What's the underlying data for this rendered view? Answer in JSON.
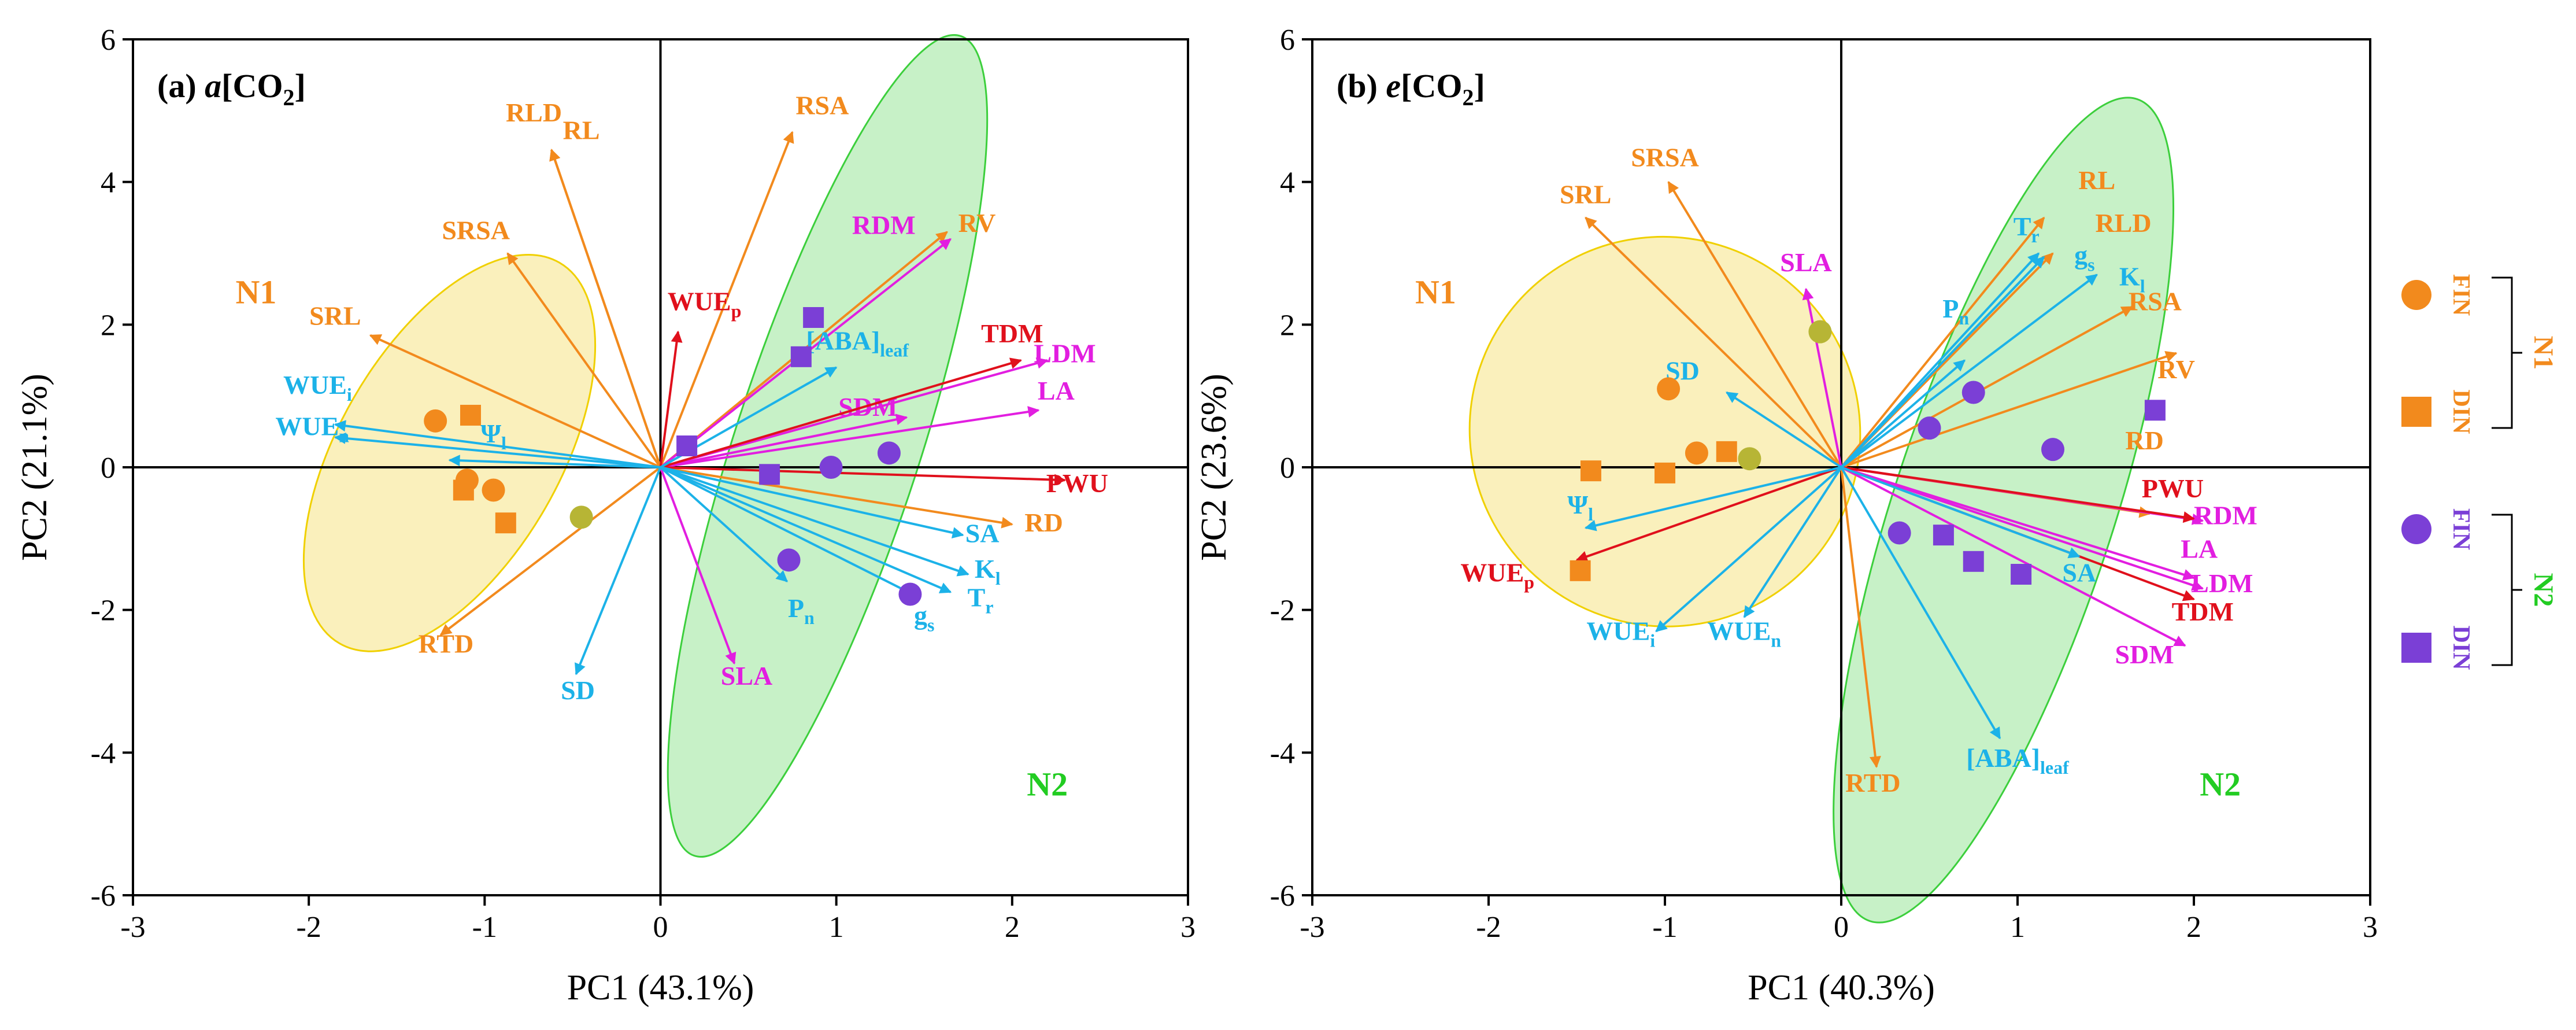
{
  "colors": {
    "orange": "#f28a1d",
    "blue": "#1cb2e8",
    "magenta": "#e21ee0",
    "red": "#e0101c",
    "purple": "#7b3fd6",
    "green_text": "#22cc22",
    "fill_yellow": "#f5e27a",
    "fill_green": "#8fe48f",
    "stroke_yellow": "#f0d000",
    "stroke_green": "#3ccf3c",
    "olive_point": "#b7b535"
  },
  "chart_data": [
    {
      "type": "scatter",
      "subtype": "pca-biplot",
      "panel_label": "(a) ",
      "panel_italic": "a",
      "panel_rest": "[CO",
      "panel_sub": "2",
      "panel_close": "]",
      "xlabel": "PC1 (43.1%)",
      "ylabel": "PC2 (21.1%)",
      "xlim": [
        -3,
        3
      ],
      "ylim": [
        -6,
        6
      ],
      "xticks": [
        "-3",
        "-2",
        "-1",
        "0",
        "1",
        "2",
        "3"
      ],
      "yticks": [
        "-6",
        "-4",
        "-2",
        "0",
        "2",
        "4",
        "6"
      ],
      "group_labels": [
        {
          "name": "N1",
          "x": -2.3,
          "y": 2.3,
          "color": "orange"
        },
        {
          "name": "N2",
          "x": 2.2,
          "y": -4.6,
          "color": "green_text"
        }
      ],
      "ellipses": [
        {
          "group": "N1",
          "cx": -1.2,
          "cy": 0.2,
          "rx": 1.25,
          "ry": 1.55,
          "angle": -60,
          "fill": "fill_yellow",
          "stroke": "stroke_yellow"
        },
        {
          "group": "N2",
          "cx": 0.95,
          "cy": 0.3,
          "rx": 2.45,
          "ry": 1.3,
          "angle": -72,
          "fill": "fill_green",
          "stroke": "stroke_green"
        }
      ],
      "vectors": [
        {
          "name": "RLD",
          "sub": "",
          "x": -0.62,
          "y": 4.45,
          "color": "orange",
          "lx": -0.72,
          "ly": 4.85
        },
        {
          "name": "RL",
          "sub": "",
          "x": -0.62,
          "y": 4.45,
          "color": "orange",
          "lx": -0.45,
          "ly": 4.6
        },
        {
          "name": "RSA",
          "sub": "",
          "x": 0.75,
          "y": 4.7,
          "color": "orange",
          "lx": 0.92,
          "ly": 4.95
        },
        {
          "name": "SRSA",
          "sub": "",
          "x": -0.87,
          "y": 3.0,
          "color": "orange",
          "lx": -1.05,
          "ly": 3.2
        },
        {
          "name": "SRL",
          "sub": "",
          "x": -1.65,
          "y": 1.85,
          "color": "orange",
          "lx": -1.85,
          "ly": 2.0
        },
        {
          "name": "RV",
          "sub": "",
          "x": 1.63,
          "y": 3.3,
          "color": "orange",
          "lx": 1.8,
          "ly": 3.3
        },
        {
          "name": "RD",
          "sub": "",
          "x": 2.0,
          "y": -0.8,
          "color": "orange",
          "lx": 2.18,
          "ly": -0.9
        },
        {
          "name": "RTD",
          "sub": "",
          "x": -1.25,
          "y": -2.35,
          "color": "orange",
          "lx": -1.22,
          "ly": -2.6
        },
        {
          "name": "RDM",
          "sub": "",
          "x": 1.65,
          "y": 3.2,
          "color": "magenta",
          "lx": 1.27,
          "ly": 3.27
        },
        {
          "name": "LDM",
          "sub": "",
          "x": 2.2,
          "y": 1.5,
          "color": "magenta",
          "lx": 2.3,
          "ly": 1.47
        },
        {
          "name": "LA",
          "sub": "",
          "x": 2.15,
          "y": 0.8,
          "color": "magenta",
          "lx": 2.25,
          "ly": 0.95
        },
        {
          "name": "SDM",
          "sub": "",
          "x": 1.4,
          "y": 0.7,
          "color": "magenta",
          "lx": 1.18,
          "ly": 0.72
        },
        {
          "name": "SLA",
          "sub": "",
          "x": 0.42,
          "y": -2.75,
          "color": "magenta",
          "lx": 0.49,
          "ly": -3.05
        },
        {
          "name": "TDM",
          "sub": "",
          "x": 2.05,
          "y": 1.5,
          "color": "red",
          "lx": 2.0,
          "ly": 1.75
        },
        {
          "name": "PWU",
          "sub": "",
          "x": 2.3,
          "y": -0.18,
          "color": "red",
          "lx": 2.37,
          "ly": -0.35
        },
        {
          "name": "WUE",
          "sub": "p",
          "x": 0.1,
          "y": 1.9,
          "color": "red",
          "lx": 0.25,
          "ly": 2.2
        },
        {
          "name": "[ABA]",
          "sub": "leaf",
          "x": 1.0,
          "y": 1.4,
          "color": "blue",
          "lx": 1.12,
          "ly": 1.65
        },
        {
          "name": "WUE",
          "sub": "i",
          "x": -1.85,
          "y": 0.6,
          "color": "blue",
          "lx": -1.95,
          "ly": 1.03
        },
        {
          "name": "WUE",
          "sub": "n",
          "x": -1.85,
          "y": 0.42,
          "color": "blue",
          "lx": -1.98,
          "ly": 0.45
        },
        {
          "name": "Ψ",
          "sub": "l",
          "x": -1.2,
          "y": 0.1,
          "color": "blue",
          "lx": -0.95,
          "ly": 0.35
        },
        {
          "name": "SD",
          "sub": "",
          "x": -0.48,
          "y": -2.9,
          "color": "blue",
          "lx": -0.47,
          "ly": -3.25
        },
        {
          "name": "P",
          "sub": "n",
          "x": 0.72,
          "y": -1.6,
          "color": "blue",
          "lx": 0.8,
          "ly": -2.1
        },
        {
          "name": "SA",
          "sub": "",
          "x": 1.72,
          "y": -0.95,
          "color": "blue",
          "lx": 1.83,
          "ly": -1.05
        },
        {
          "name": "K",
          "sub": "l",
          "x": 1.75,
          "y": -1.5,
          "color": "blue",
          "lx": 1.86,
          "ly": -1.55
        },
        {
          "name": "T",
          "sub": "r",
          "x": 1.65,
          "y": -1.75,
          "color": "blue",
          "lx": 1.82,
          "ly": -1.95
        },
        {
          "name": "g",
          "sub": "s",
          "x": 1.45,
          "y": -1.8,
          "color": "blue",
          "lx": 1.5,
          "ly": -2.2
        }
      ],
      "points": [
        {
          "x": -1.28,
          "y": 0.65,
          "shape": "circle",
          "color": "orange"
        },
        {
          "x": -1.1,
          "y": -0.18,
          "shape": "circle",
          "color": "orange"
        },
        {
          "x": -0.95,
          "y": -0.32,
          "shape": "circle",
          "color": "orange"
        },
        {
          "x": -1.08,
          "y": 0.73,
          "shape": "square",
          "color": "orange"
        },
        {
          "x": -1.12,
          "y": -0.32,
          "shape": "square",
          "color": "orange"
        },
        {
          "x": -0.88,
          "y": -0.78,
          "shape": "square",
          "color": "orange"
        },
        {
          "x": -0.45,
          "y": -0.7,
          "shape": "circle",
          "color": "olive_point"
        },
        {
          "x": 1.3,
          "y": 0.2,
          "shape": "circle",
          "color": "purple"
        },
        {
          "x": 0.97,
          "y": 0.0,
          "shape": "circle",
          "color": "purple"
        },
        {
          "x": 0.73,
          "y": -1.3,
          "shape": "circle",
          "color": "purple"
        },
        {
          "x": 1.42,
          "y": -1.78,
          "shape": "circle",
          "color": "purple"
        },
        {
          "x": 0.87,
          "y": 2.1,
          "shape": "square",
          "color": "purple"
        },
        {
          "x": 0.8,
          "y": 1.55,
          "shape": "square",
          "color": "purple"
        },
        {
          "x": 0.15,
          "y": 0.3,
          "shape": "square",
          "color": "purple"
        },
        {
          "x": 0.62,
          "y": -0.1,
          "shape": "square",
          "color": "purple"
        }
      ]
    },
    {
      "type": "scatter",
      "subtype": "pca-biplot",
      "panel_label": "(b) ",
      "panel_italic": "e",
      "panel_rest": "[CO",
      "panel_sub": "2",
      "panel_close": "]",
      "xlabel": "PC1 (40.3%)",
      "ylabel": "PC2 (23.6%)",
      "xlim": [
        -3,
        3
      ],
      "ylim": [
        -6,
        6
      ],
      "xticks": [
        "-3",
        "-2",
        "-1",
        "0",
        "1",
        "2",
        "3"
      ],
      "yticks": [
        "-6",
        "-4",
        "-2",
        "0",
        "2",
        "4",
        "6"
      ],
      "group_labels": [
        {
          "name": "N1",
          "x": -2.3,
          "y": 2.3,
          "color": "orange"
        },
        {
          "name": "N2",
          "x": 2.15,
          "y": -4.6,
          "color": "green_text"
        }
      ],
      "ellipses": [
        {
          "group": "N1",
          "cx": -1.0,
          "cy": 0.5,
          "rx": 1.1,
          "ry": 2.75,
          "angle": -52,
          "fill": "fill_yellow",
          "stroke": "stroke_yellow"
        },
        {
          "group": "N2",
          "cx": 0.92,
          "cy": -0.6,
          "rx": 2.45,
          "ry": 1.55,
          "angle": -72,
          "fill": "fill_green",
          "stroke": "stroke_green"
        }
      ],
      "vectors": [
        {
          "name": "SRSA",
          "sub": "",
          "x": -0.98,
          "y": 4.0,
          "color": "orange",
          "lx": -1.0,
          "ly": 4.22
        },
        {
          "name": "SRL",
          "sub": "",
          "x": -1.45,
          "y": 3.5,
          "color": "orange",
          "lx": -1.45,
          "ly": 3.7
        },
        {
          "name": "RL",
          "sub": "",
          "x": 1.15,
          "y": 3.5,
          "color": "orange",
          "lx": 1.45,
          "ly": 3.9
        },
        {
          "name": "RLD",
          "sub": "",
          "x": 1.2,
          "y": 3.0,
          "color": "orange",
          "lx": 1.6,
          "ly": 3.3
        },
        {
          "name": "RSA",
          "sub": "",
          "x": 1.65,
          "y": 2.25,
          "color": "orange",
          "lx": 1.78,
          "ly": 2.2
        },
        {
          "name": "RV",
          "sub": "",
          "x": 1.9,
          "y": 1.6,
          "color": "orange",
          "lx": 1.9,
          "ly": 1.25
        },
        {
          "name": "RD",
          "sub": "",
          "x": 1.75,
          "y": -0.65,
          "color": "orange",
          "lx": 1.72,
          "ly": 0.25
        },
        {
          "name": "RTD",
          "sub": "",
          "x": 0.2,
          "y": -4.2,
          "color": "orange",
          "lx": 0.18,
          "ly": -4.55
        },
        {
          "name": "SLA",
          "sub": "",
          "x": -0.2,
          "y": 2.5,
          "color": "magenta",
          "lx": -0.2,
          "ly": 2.75
        },
        {
          "name": "RDM",
          "sub": "",
          "x": 2.05,
          "y": -0.75,
          "color": "magenta",
          "lx": 2.18,
          "ly": -0.8
        },
        {
          "name": "LA",
          "sub": "",
          "x": 2.0,
          "y": -1.55,
          "color": "magenta",
          "lx": 2.03,
          "ly": -1.27
        },
        {
          "name": "LDM",
          "sub": "",
          "x": 2.05,
          "y": -1.7,
          "color": "magenta",
          "lx": 2.16,
          "ly": -1.75
        },
        {
          "name": "SDM",
          "sub": "",
          "x": 1.95,
          "y": -2.5,
          "color": "magenta",
          "lx": 1.72,
          "ly": -2.75
        },
        {
          "name": "TDM",
          "sub": "",
          "x": 2.0,
          "y": -1.85,
          "color": "red",
          "lx": 2.05,
          "ly": -2.15
        },
        {
          "name": "PWU",
          "sub": "",
          "x": 2.0,
          "y": -0.72,
          "color": "red",
          "lx": 1.88,
          "ly": -0.42
        },
        {
          "name": "WUE",
          "sub": "p",
          "x": -1.5,
          "y": -1.3,
          "color": "red",
          "lx": -1.95,
          "ly": -1.6
        },
        {
          "name": "T",
          "sub": "r",
          "x": 1.12,
          "y": 3.0,
          "color": "blue",
          "lx": 1.05,
          "ly": 3.25
        },
        {
          "name": "g",
          "sub": "s",
          "x": 1.15,
          "y": 2.95,
          "color": "blue",
          "lx": 1.38,
          "ly": 2.85
        },
        {
          "name": "K",
          "sub": "l",
          "x": 1.45,
          "y": 2.7,
          "color": "blue",
          "lx": 1.65,
          "ly": 2.55
        },
        {
          "name": "P",
          "sub": "n",
          "x": 0.7,
          "y": 1.5,
          "color": "blue",
          "lx": 0.65,
          "ly": 2.1
        },
        {
          "name": "SD",
          "sub": "",
          "x": -0.65,
          "y": 1.05,
          "color": "blue",
          "lx": -0.9,
          "ly": 1.23
        },
        {
          "name": "Ψ",
          "sub": "l",
          "x": -1.45,
          "y": -0.85,
          "color": "blue",
          "lx": -1.48,
          "ly": -0.65
        },
        {
          "name": "WUE",
          "sub": "i",
          "x": -1.05,
          "y": -2.3,
          "color": "blue",
          "lx": -1.25,
          "ly": -2.42
        },
        {
          "name": "WUE",
          "sub": "n",
          "x": -0.55,
          "y": -2.1,
          "color": "blue",
          "lx": -0.55,
          "ly": -2.42
        },
        {
          "name": "SA",
          "sub": "",
          "x": 1.35,
          "y": -1.25,
          "color": "blue",
          "lx": 1.35,
          "ly": -1.6
        },
        {
          "name": "[ABA]",
          "sub": "leaf",
          "x": 0.9,
          "y": -3.8,
          "color": "blue",
          "lx": 1.0,
          "ly": -4.2
        }
      ],
      "points": [
        {
          "x": -0.98,
          "y": 1.1,
          "shape": "circle",
          "color": "orange"
        },
        {
          "x": -0.82,
          "y": 0.2,
          "shape": "circle",
          "color": "orange"
        },
        {
          "x": -0.65,
          "y": 0.22,
          "shape": "square",
          "color": "orange"
        },
        {
          "x": -1.42,
          "y": -0.05,
          "shape": "square",
          "color": "orange"
        },
        {
          "x": -1.0,
          "y": -0.08,
          "shape": "square",
          "color": "orange"
        },
        {
          "x": -1.48,
          "y": -1.45,
          "shape": "square",
          "color": "orange"
        },
        {
          "x": -0.12,
          "y": 1.9,
          "shape": "circle",
          "color": "olive_point"
        },
        {
          "x": -0.52,
          "y": 0.12,
          "shape": "circle",
          "color": "olive_point"
        },
        {
          "x": 0.5,
          "y": 0.55,
          "shape": "circle",
          "color": "purple"
        },
        {
          "x": 0.75,
          "y": 1.05,
          "shape": "circle",
          "color": "purple"
        },
        {
          "x": 1.2,
          "y": 0.25,
          "shape": "circle",
          "color": "purple"
        },
        {
          "x": 0.33,
          "y": -0.92,
          "shape": "circle",
          "color": "purple"
        },
        {
          "x": 1.78,
          "y": 0.8,
          "shape": "square",
          "color": "purple"
        },
        {
          "x": 0.58,
          "y": -0.95,
          "shape": "square",
          "color": "purple"
        },
        {
          "x": 0.75,
          "y": -1.32,
          "shape": "square",
          "color": "purple"
        },
        {
          "x": 1.02,
          "y": -1.5,
          "shape": "square",
          "color": "purple"
        }
      ]
    }
  ],
  "legend": {
    "items": [
      {
        "label": "FIN",
        "shape": "circle",
        "color": "orange"
      },
      {
        "label": "DIN",
        "shape": "square",
        "color": "orange"
      },
      {
        "label": "FIN",
        "shape": "circle",
        "color": "purple"
      },
      {
        "label": "DIN",
        "shape": "square",
        "color": "purple"
      }
    ],
    "groups": [
      {
        "label": "N1",
        "color": "orange"
      },
      {
        "label": "N2",
        "color": "green_text"
      }
    ]
  }
}
